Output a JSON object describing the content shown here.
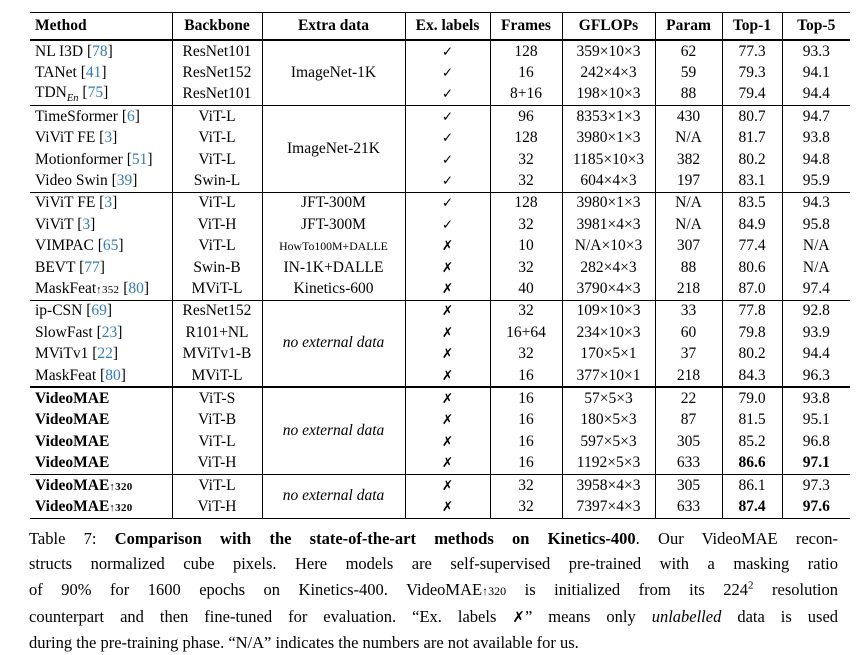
{
  "colors": {
    "cite_blue": "#2e7bbf",
    "text": "#000000",
    "background": "#ffffff"
  },
  "icons": {
    "check": "✓",
    "cross": "✗"
  },
  "table": {
    "columns": [
      "Method",
      "Backbone",
      "Extra data",
      "Ex. labels",
      "Frames",
      "GFLOPs",
      "Param",
      "Top-1",
      "Top-5"
    ],
    "groups": [
      {
        "extra": {
          "text": "ImageNet-1K",
          "italic": false
        },
        "rows": [
          {
            "method": {
              "name": "NL I3D"
            },
            "cite": "78",
            "backbone": "ResNet101",
            "label": "check",
            "frames": "128",
            "gflops": "359×10×3",
            "param": "62",
            "top1": "77.3",
            "top5": "93.3"
          },
          {
            "method": {
              "name": "TANet"
            },
            "cite": "41",
            "backbone": "ResNet152",
            "label": "check",
            "frames": "16",
            "gflops": "242×4×3",
            "param": "59",
            "top1": "79.3",
            "top5": "94.1"
          },
          {
            "method": {
              "name": "TDN",
              "sub": "En"
            },
            "cite": "75",
            "backbone": "ResNet101",
            "label": "check",
            "frames": "8+16",
            "gflops": "198×10×3",
            "param": "88",
            "top1": "79.4",
            "top5": "94.4"
          }
        ]
      },
      {
        "extra": {
          "text": "ImageNet-21K",
          "italic": false
        },
        "rows": [
          {
            "method": {
              "name": "TimeSformer"
            },
            "cite": "6",
            "backbone": "ViT-L",
            "label": "check",
            "frames": "96",
            "gflops": "8353×1×3",
            "param": "430",
            "top1": "80.7",
            "top5": "94.7"
          },
          {
            "method": {
              "name": "ViViT FE"
            },
            "cite": "3",
            "backbone": "ViT-L",
            "label": "check",
            "frames": "128",
            "gflops": "3980×1×3",
            "param": "N/A",
            "top1": "81.7",
            "top5": "93.8"
          },
          {
            "method": {
              "name": "Motionformer"
            },
            "cite": "51",
            "backbone": "ViT-L",
            "label": "check",
            "frames": "32",
            "gflops": "1185×10×3",
            "param": "382",
            "top1": "80.2",
            "top5": "94.8"
          },
          {
            "method": {
              "name": "Video Swin"
            },
            "cite": "39",
            "backbone": "Swin-L",
            "label": "check",
            "frames": "32",
            "gflops": "604×4×3",
            "param": "197",
            "top1": "83.1",
            "top5": "95.9"
          }
        ]
      },
      {
        "rows": [
          {
            "method": {
              "name": "ViViT FE"
            },
            "cite": "3",
            "backbone": "ViT-L",
            "extra": {
              "text": "JFT-300M"
            },
            "label": "check",
            "frames": "128",
            "gflops": "3980×1×3",
            "param": "N/A",
            "top1": "83.5",
            "top5": "94.3"
          },
          {
            "method": {
              "name": "ViViT"
            },
            "cite": "3",
            "backbone": "ViT-H",
            "extra": {
              "text": "JFT-300M"
            },
            "label": "check",
            "frames": "32",
            "gflops": "3981×4×3",
            "param": "N/A",
            "top1": "84.9",
            "top5": "95.8"
          },
          {
            "method": {
              "name": "VIMPAC"
            },
            "cite": "65",
            "backbone": "ViT-L",
            "extra": {
              "text": "HowTo100M+DALLE",
              "small": true
            },
            "label": "cross",
            "frames": "10",
            "gflops": "N/A×10×3",
            "param": "307",
            "top1": "77.4",
            "top5": "N/A"
          },
          {
            "method": {
              "name": "BEVT"
            },
            "cite": "77",
            "backbone": "Swin-B",
            "extra": {
              "text": "IN-1K+DALLE"
            },
            "label": "cross",
            "frames": "32",
            "gflops": "282×4×3",
            "param": "88",
            "top1": "80.6",
            "top5": "N/A"
          },
          {
            "method": {
              "name": "MaskFeat",
              "riser": "↑352"
            },
            "cite": "80",
            "backbone": "MViT-L",
            "extra": {
              "text": "Kinetics-600"
            },
            "label": "cross",
            "frames": "40",
            "gflops": "3790×4×3",
            "param": "218",
            "top1": "87.0",
            "top5": "97.4"
          }
        ]
      },
      {
        "extra": {
          "text": "no external data",
          "italic": true
        },
        "rows": [
          {
            "method": {
              "name": "ip-CSN"
            },
            "cite": "69",
            "backbone": "ResNet152",
            "label": "cross",
            "frames": "32",
            "gflops": "109×10×3",
            "param": "33",
            "top1": "77.8",
            "top5": "92.8"
          },
          {
            "method": {
              "name": "SlowFast"
            },
            "cite": "23",
            "backbone": "R101+NL",
            "label": "cross",
            "frames": "16+64",
            "gflops": "234×10×3",
            "param": "60",
            "top1": "79.8",
            "top5": "93.9"
          },
          {
            "method": {
              "name": "MViTv1"
            },
            "cite": "22",
            "backbone": "MViTv1-B",
            "label": "cross",
            "frames": "32",
            "gflops": "170×5×1",
            "param": "37",
            "top1": "80.2",
            "top5": "94.4"
          },
          {
            "method": {
              "name": "MaskFeat"
            },
            "cite": "80",
            "backbone": "MViT-L",
            "label": "cross",
            "frames": "16",
            "gflops": "377×10×1",
            "param": "218",
            "top1": "84.3",
            "top5": "96.3"
          }
        ]
      },
      {
        "thick_top": true,
        "extra": {
          "text": "no external data",
          "italic": true
        },
        "rows": [
          {
            "method": {
              "name": "VideoMAE"
            },
            "bold": true,
            "backbone": "ViT-S",
            "label": "cross",
            "frames": "16",
            "gflops": "57×5×3",
            "param": "22",
            "top1": "79.0",
            "top5": "93.8"
          },
          {
            "method": {
              "name": "VideoMAE"
            },
            "bold": true,
            "backbone": "ViT-B",
            "label": "cross",
            "frames": "16",
            "gflops": "180×5×3",
            "param": "87",
            "top1": "81.5",
            "top5": "95.1"
          },
          {
            "method": {
              "name": "VideoMAE"
            },
            "bold": true,
            "backbone": "ViT-L",
            "label": "cross",
            "frames": "16",
            "gflops": "597×5×3",
            "param": "305",
            "top1": "85.2",
            "top5": "96.8"
          },
          {
            "method": {
              "name": "VideoMAE"
            },
            "bold": true,
            "backbone": "ViT-H",
            "label": "cross",
            "frames": "16",
            "gflops": "1192×5×3",
            "param": "633",
            "top1": "86.6",
            "top1_bold": true,
            "top5": "97.1",
            "top5_bold": true
          }
        ]
      },
      {
        "extra": {
          "text": "no external data",
          "italic": true
        },
        "rows": [
          {
            "method": {
              "name": "VideoMAE",
              "riser": "↑320"
            },
            "bold": true,
            "backbone": "ViT-L",
            "label": "cross",
            "frames": "32",
            "gflops": "3958×4×3",
            "param": "305",
            "top1": "86.1",
            "top5": "97.3"
          },
          {
            "method": {
              "name": "VideoMAE",
              "riser": "↑320"
            },
            "bold": true,
            "backbone": "ViT-H",
            "label": "cross",
            "frames": "32",
            "gflops": "7397×4×3",
            "param": "633",
            "top1": "87.4",
            "top1_bold": true,
            "top5": "97.6",
            "top5_bold": true
          }
        ]
      }
    ]
  },
  "caption": {
    "l1a": "Table 7: ",
    "l1b": "Comparison with the state-of-the-art methods on Kinetics-400",
    "l1c": ". Our VideoMAE recon-",
    "l2": "structs normalized cube pixels. Here models are self-supervised pre-trained with a masking ratio",
    "l3a": "of 90% for 1600 epochs on Kinetics-400. VideoMAE",
    "l3b": "↑320",
    "l3c": " is initialized from its 224",
    "l3d": "2",
    "l3e": " resolution",
    "l4a": "counterpart and then fine-tuned for evaluation. “Ex. labels ",
    "l4b": "✗",
    "l4c": "” means only ",
    "l4d": "unlabelled",
    "l4e": " data is used",
    "l5": "during the pre-training phase. “N/A” indicates the numbers are not available for us."
  }
}
